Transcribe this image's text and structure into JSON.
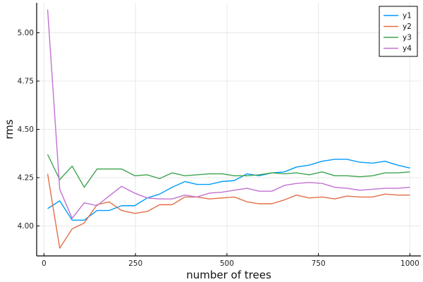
{
  "chart_data": {
    "type": "line",
    "title": "",
    "xlabel": "number of trees",
    "ylabel": "rms",
    "xlim": [
      -20,
      1030
    ],
    "ylim": [
      3.845,
      5.155
    ],
    "xticks": [
      0,
      250,
      500,
      750,
      1000
    ],
    "xtick_labels": [
      "0",
      "250",
      "500",
      "750",
      "1000"
    ],
    "yticks": [
      4.0,
      4.25,
      4.5,
      4.75,
      5.0
    ],
    "ytick_labels": [
      "4.00",
      "4.25",
      "4.50",
      "4.75",
      "5.00"
    ],
    "grid": true,
    "legend_position": "top-right",
    "x": [
      10,
      43,
      77,
      110,
      145,
      178,
      212,
      248,
      282,
      316,
      350,
      385,
      418,
      452,
      487,
      520,
      555,
      588,
      623,
      657,
      690,
      725,
      760,
      795,
      828,
      863,
      898,
      932,
      966,
      1000
    ],
    "series": [
      {
        "name": "y1",
        "color": "#009AFA",
        "values": [
          4.09,
          4.13,
          4.03,
          4.03,
          4.08,
          4.08,
          4.105,
          4.105,
          4.145,
          4.165,
          4.2,
          4.23,
          4.215,
          4.215,
          4.23,
          4.235,
          4.27,
          4.26,
          4.275,
          4.28,
          4.305,
          4.315,
          4.335,
          4.345,
          4.345,
          4.33,
          4.325,
          4.335,
          4.315,
          4.3
        ]
      },
      {
        "name": "y2",
        "color": "#E36F47",
        "values": [
          4.27,
          3.885,
          3.985,
          4.015,
          4.11,
          4.125,
          4.08,
          4.065,
          4.075,
          4.11,
          4.11,
          4.15,
          4.15,
          4.14,
          4.145,
          4.15,
          4.125,
          4.115,
          4.115,
          4.135,
          4.16,
          4.145,
          4.15,
          4.14,
          4.155,
          4.15,
          4.15,
          4.165,
          4.16,
          4.16
        ]
      },
      {
        "name": "y3",
        "color": "#3EA44E",
        "values": [
          4.37,
          4.24,
          4.31,
          4.2,
          4.295,
          4.295,
          4.295,
          4.26,
          4.265,
          4.245,
          4.275,
          4.26,
          4.265,
          4.27,
          4.27,
          4.26,
          4.26,
          4.265,
          4.275,
          4.27,
          4.275,
          4.265,
          4.28,
          4.26,
          4.26,
          4.255,
          4.26,
          4.275,
          4.275,
          4.28
        ]
      },
      {
        "name": "y4",
        "color": "#C271D2",
        "values": [
          5.12,
          4.19,
          4.04,
          4.12,
          4.105,
          4.155,
          4.205,
          4.17,
          4.145,
          4.14,
          4.14,
          4.16,
          4.15,
          4.17,
          4.175,
          4.185,
          4.195,
          4.18,
          4.18,
          4.21,
          4.22,
          4.225,
          4.22,
          4.2,
          4.195,
          4.185,
          4.19,
          4.195,
          4.195,
          4.2
        ]
      }
    ]
  }
}
